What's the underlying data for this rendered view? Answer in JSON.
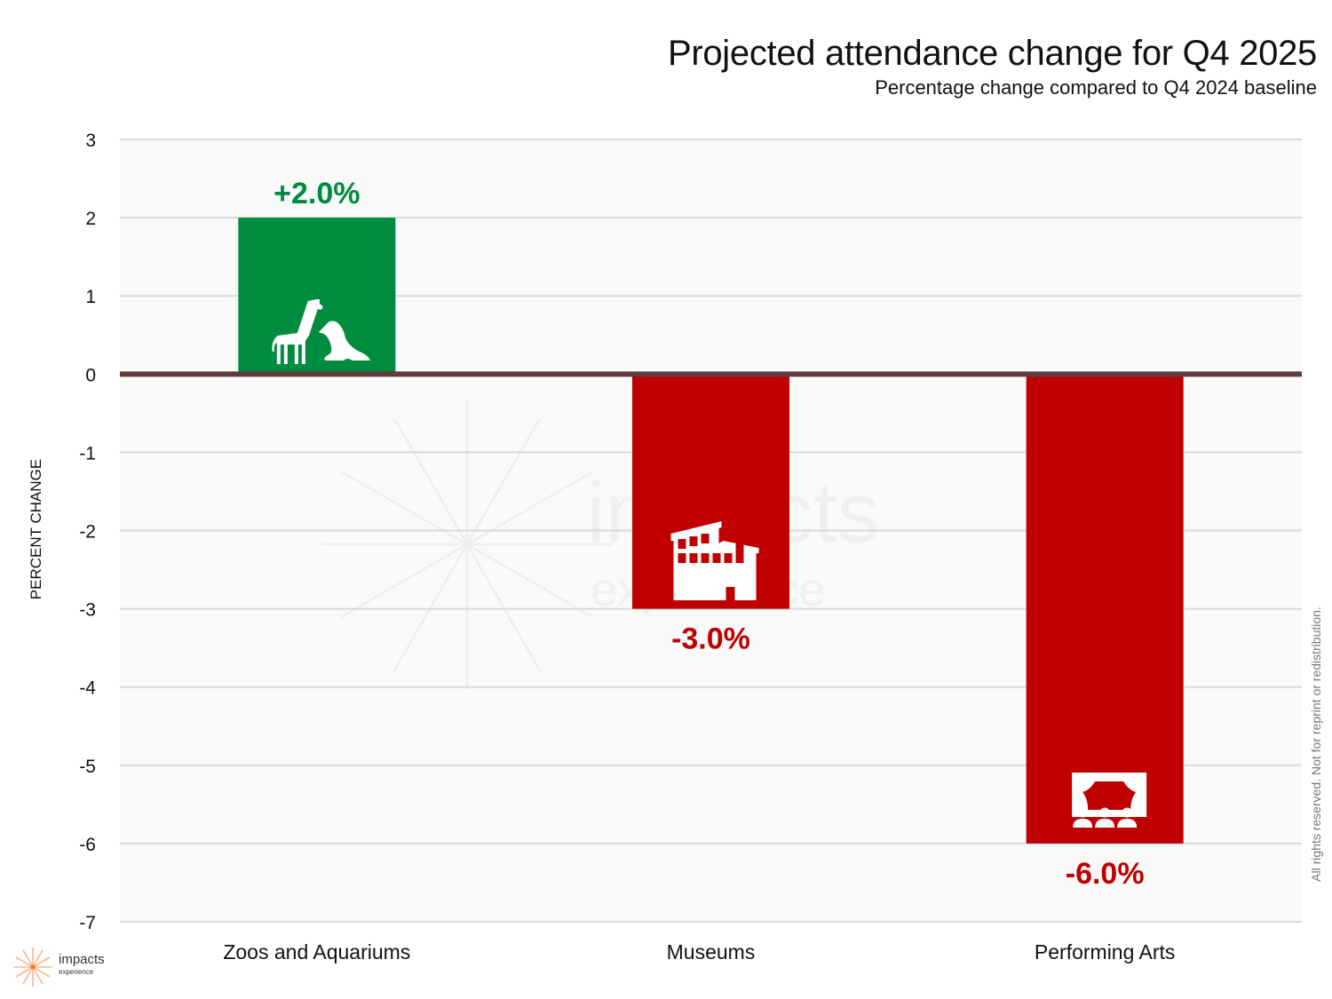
{
  "header": {
    "title": "Projected attendance change for Q4 2025",
    "subtitle": "Percentage change compared to Q4 2024 baseline"
  },
  "footer": {
    "copyright": "All rights reserved. Not for reprint or redistribution.",
    "logo_name": "impacts",
    "logo_tagline": "experience"
  },
  "watermark": {
    "text1": "impacts",
    "text2": "experience"
  },
  "colors": {
    "positive": "#008C3E",
    "negative": "#C00000",
    "zero_line": "#5E3C3C",
    "grid": "#D9D9D9",
    "plot_bg": "#FAFAFA",
    "logo_accent": "#F39C5A"
  },
  "chart_data": {
    "type": "bar",
    "title": "Projected attendance change for Q4 2025",
    "subtitle": "Percentage change compared to Q4 2024 baseline",
    "xlabel": "",
    "ylabel": "PERCENT CHANGE",
    "ylim": [
      -7,
      3
    ],
    "yticks": [
      3,
      2,
      1,
      0,
      -1,
      -2,
      -3,
      -4,
      -5,
      -6,
      -7
    ],
    "grid": true,
    "categories": [
      "Zoos and Aquariums",
      "Museums",
      "Performing Arts"
    ],
    "values": [
      2.0,
      -3.0,
      -6.0
    ],
    "data_labels": [
      "+2.0%",
      "-3.0%",
      "-6.0%"
    ],
    "icons": [
      "giraffe-seal-icon",
      "museum-building-icon",
      "theater-stage-icon"
    ]
  }
}
